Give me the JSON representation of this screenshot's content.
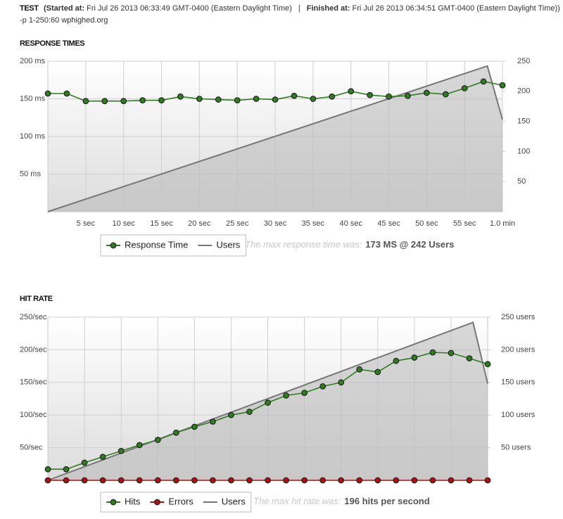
{
  "header": {
    "title": "TEST",
    "started_label": "(Started at:",
    "started": "Fri Jul 26 2013 06:33:49 GMT-0400 (Eastern Daylight Time)",
    "separator": "|",
    "finished_label": "Finished at:",
    "finished": "Fri Jul 26 2013 06:34:51 GMT-0400 (Eastern Daylight Time))",
    "subtitle": "-p 1-250:60 wphighed.org"
  },
  "chart_data": [
    {
      "type": "line",
      "title": "RESPONSE TIMES",
      "xlim": [
        0,
        60
      ],
      "xticks": [
        {
          "value": 5,
          "label": "5 sec"
        },
        {
          "value": 10,
          "label": "10 sec"
        },
        {
          "value": 15,
          "label": "15 sec"
        },
        {
          "value": 20,
          "label": "20 sec"
        },
        {
          "value": 25,
          "label": "25 sec"
        },
        {
          "value": 30,
          "label": "30 sec"
        },
        {
          "value": 35,
          "label": "35 sec"
        },
        {
          "value": 40,
          "label": "40 sec"
        },
        {
          "value": 45,
          "label": "45 sec"
        },
        {
          "value": 50,
          "label": "50 sec"
        },
        {
          "value": 55,
          "label": "55 sec"
        },
        {
          "value": 60,
          "label": "1.0 min"
        }
      ],
      "show_xtick_labels": true,
      "ylim": [
        0,
        200
      ],
      "yticks": [
        {
          "value": 50,
          "label": "50 ms"
        },
        {
          "value": 100,
          "label": "100 ms"
        },
        {
          "value": 150,
          "label": "150 ms"
        },
        {
          "value": 200,
          "label": "200 ms"
        }
      ],
      "y2lim": [
        0,
        250
      ],
      "y2ticks": [
        50,
        100,
        150,
        200,
        250
      ],
      "grid": true,
      "series": [
        {
          "name": "Response Time",
          "color": "#2e7d1e",
          "markers": true,
          "x": [
            0,
            2.5,
            5,
            7.5,
            10,
            12.5,
            15,
            17.5,
            20,
            22.5,
            25,
            27.5,
            30,
            32.5,
            35,
            37.5,
            40,
            42.5,
            45,
            47.5,
            50,
            52.5,
            55,
            57.5,
            60
          ],
          "values": [
            157,
            157,
            147,
            147,
            147,
            148,
            148,
            153,
            150,
            149,
            148,
            150,
            149,
            154,
            150,
            153,
            160,
            155,
            153,
            154,
            158,
            156,
            164,
            173,
            168
          ]
        },
        {
          "name": "Users",
          "color": "#777777",
          "axis": "y2",
          "markers": false,
          "area": true,
          "x": [
            0,
            58,
            60
          ],
          "values": [
            0,
            242,
            153
          ]
        }
      ],
      "note": "The max response time was:",
      "note_value": "173 MS @ 242 Users"
    },
    {
      "type": "line",
      "title": "HIT RATE",
      "xlim": [
        0,
        60
      ],
      "xticks": [
        5,
        10,
        15,
        20,
        25,
        30,
        35,
        40,
        45,
        50,
        55
      ],
      "show_xtick_labels": false,
      "ylim": [
        0,
        250
      ],
      "yticks": [
        {
          "value": 50,
          "label": "50/sec"
        },
        {
          "value": 100,
          "label": "100/sec"
        },
        {
          "value": 150,
          "label": "150/sec"
        },
        {
          "value": 200,
          "label": "200/sec"
        },
        {
          "value": 250,
          "label": "250/sec"
        }
      ],
      "y2lim": [
        0,
        250
      ],
      "y2ticks": [
        {
          "value": 50,
          "label": "50 users"
        },
        {
          "value": 100,
          "label": "100 users"
        },
        {
          "value": 150,
          "label": "150 users"
        },
        {
          "value": 200,
          "label": "200 users"
        },
        {
          "value": 250,
          "label": "250 users"
        }
      ],
      "grid": true,
      "series": [
        {
          "name": "Hits",
          "color": "#2e7d1e",
          "markers": true,
          "x": [
            0,
            2.5,
            5,
            7.5,
            10,
            12.5,
            15,
            17.5,
            20,
            22.5,
            25,
            27.5,
            30,
            32.5,
            35,
            37.5,
            40,
            42.5,
            45,
            47.5,
            50,
            52.5,
            55,
            57.5,
            60
          ],
          "values": [
            17,
            17,
            27,
            36,
            45,
            54,
            62,
            73,
            82,
            90,
            100,
            105,
            119,
            130,
            134,
            144,
            150,
            170,
            166,
            183,
            188,
            196,
            195,
            187,
            178
          ]
        },
        {
          "name": "Errors",
          "color": "#b01010",
          "markers": true,
          "x": [
            0,
            2.5,
            5,
            7.5,
            10,
            12.5,
            15,
            17.5,
            20,
            22.5,
            25,
            27.5,
            30,
            32.5,
            35,
            37.5,
            40,
            42.5,
            45,
            47.5,
            50,
            52.5,
            55,
            57.5,
            60
          ],
          "values": [
            0,
            0,
            0,
            0,
            0,
            0,
            0,
            0,
            0,
            0,
            0,
            0,
            0,
            0,
            0,
            0,
            0,
            0,
            0,
            0,
            0,
            0,
            0,
            0,
            0
          ]
        },
        {
          "name": "Users",
          "color": "#777777",
          "axis": "y2",
          "markers": false,
          "area": true,
          "x": [
            0,
            58,
            60
          ],
          "values": [
            0,
            242,
            148
          ]
        }
      ],
      "note": "The max hit rate was:",
      "note_value": "196 hits per second"
    }
  ]
}
